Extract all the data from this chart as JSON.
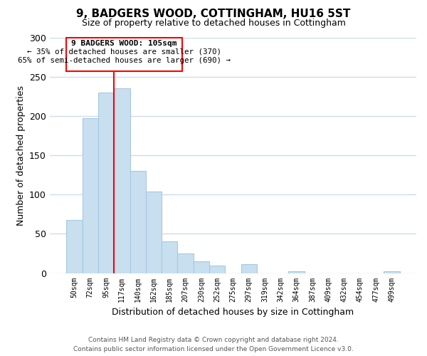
{
  "title": "9, BADGERS WOOD, COTTINGHAM, HU16 5ST",
  "subtitle": "Size of property relative to detached houses in Cottingham",
  "xlabel": "Distribution of detached houses by size in Cottingham",
  "ylabel": "Number of detached properties",
  "bar_labels": [
    "50sqm",
    "72sqm",
    "95sqm",
    "117sqm",
    "140sqm",
    "162sqm",
    "185sqm",
    "207sqm",
    "230sqm",
    "252sqm",
    "275sqm",
    "297sqm",
    "319sqm",
    "342sqm",
    "364sqm",
    "387sqm",
    "409sqm",
    "432sqm",
    "454sqm",
    "477sqm",
    "499sqm"
  ],
  "bar_heights": [
    68,
    197,
    230,
    235,
    130,
    104,
    40,
    25,
    15,
    10,
    0,
    11,
    0,
    0,
    2,
    0,
    0,
    0,
    0,
    0,
    2
  ],
  "bar_color": "#c8dff0",
  "bar_edge_color": "#a8c8e0",
  "red_line_x": 2.5,
  "ylim": [
    0,
    300
  ],
  "yticks": [
    0,
    50,
    100,
    150,
    200,
    250,
    300
  ],
  "annotation_title": "9 BADGERS WOOD: 105sqm",
  "annotation_line1": "← 35% of detached houses are smaller (370)",
  "annotation_line2": "65% of semi-detached houses are larger (690) →",
  "footer_line1": "Contains HM Land Registry data © Crown copyright and database right 2024.",
  "footer_line2": "Contains public sector information licensed under the Open Government Licence v3.0.",
  "background_color": "#ffffff",
  "grid_color": "#d0dde8"
}
